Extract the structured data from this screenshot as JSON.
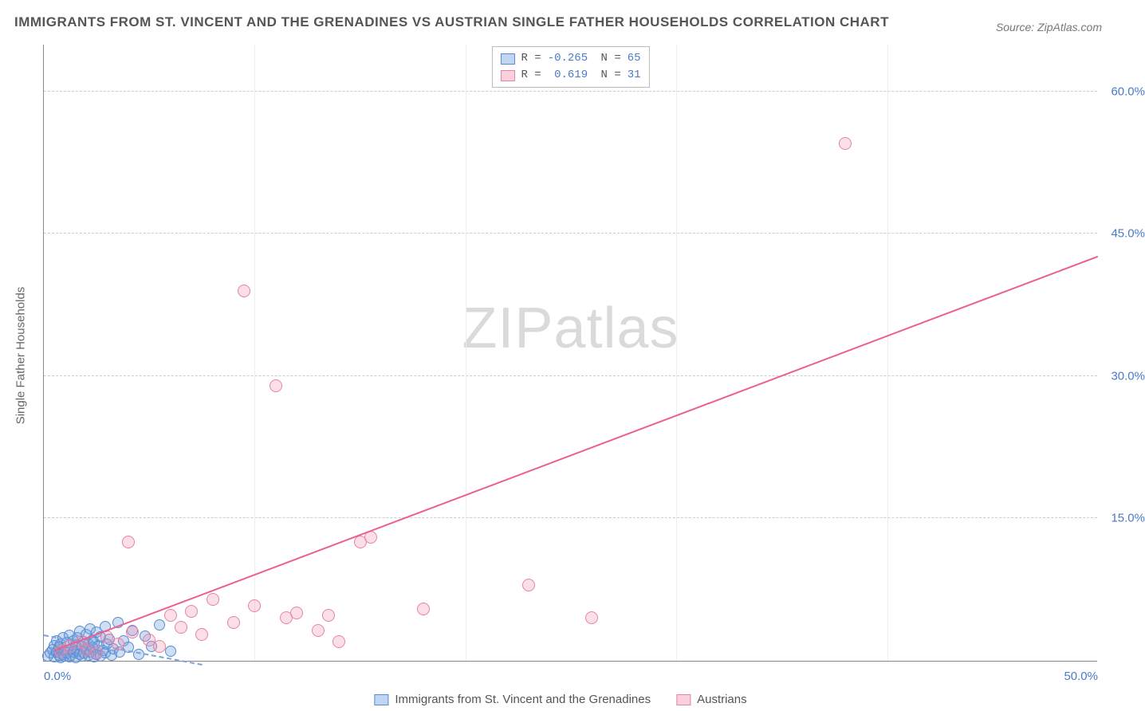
{
  "title": "IMMIGRANTS FROM ST. VINCENT AND THE GRENADINES VS AUSTRIAN SINGLE FATHER HOUSEHOLDS CORRELATION CHART",
  "source": "Source: ZipAtlas.com",
  "watermark": "ZIPatlas",
  "chart": {
    "type": "scatter",
    "xlabel_legend": [
      "Immigrants from St. Vincent and the Grenadines",
      "Austrians"
    ],
    "ylabel": "Single Father Households",
    "xlim": [
      0.0,
      50.0
    ],
    "ylim": [
      0.0,
      65.0
    ],
    "xtick_labels": [
      "0.0%",
      "50.0%"
    ],
    "xtick_positions": [
      0.0,
      50.0
    ],
    "ytick_labels": [
      "15.0%",
      "30.0%",
      "45.0%",
      "60.0%"
    ],
    "ytick_positions": [
      15.0,
      30.0,
      45.0,
      60.0
    ],
    "grid_color": "#cccccc",
    "axis_color": "#888888",
    "background_color": "#ffffff",
    "series": [
      {
        "name": "Immigrants from St. Vincent and the Grenadines",
        "R": -0.265,
        "N": 65,
        "color_fill": "rgba(116,162,222,0.35)",
        "color_stroke": "#5a8cd4",
        "marker_size": 14,
        "trend": {
          "x0": 0.0,
          "y0": 2.6,
          "x1": 7.5,
          "y1": -0.5,
          "style": "dashed"
        },
        "points": [
          [
            0.2,
            0.5
          ],
          [
            0.3,
            0.8
          ],
          [
            0.4,
            1.2
          ],
          [
            0.5,
            0.4
          ],
          [
            0.5,
            1.6
          ],
          [
            0.6,
            0.9
          ],
          [
            0.6,
            2.1
          ],
          [
            0.7,
            0.6
          ],
          [
            0.7,
            1.4
          ],
          [
            0.8,
            0.3
          ],
          [
            0.8,
            1.8
          ],
          [
            0.9,
            0.7
          ],
          [
            0.9,
            2.4
          ],
          [
            1.0,
            0.5
          ],
          [
            1.0,
            1.1
          ],
          [
            1.1,
            1.9
          ],
          [
            1.1,
            0.8
          ],
          [
            1.2,
            0.4
          ],
          [
            1.2,
            2.7
          ],
          [
            1.3,
            1.3
          ],
          [
            1.3,
            0.6
          ],
          [
            1.4,
            2.1
          ],
          [
            1.4,
            0.9
          ],
          [
            1.5,
            1.7
          ],
          [
            1.5,
            0.3
          ],
          [
            1.6,
            2.4
          ],
          [
            1.6,
            1.0
          ],
          [
            1.7,
            0.7
          ],
          [
            1.7,
            3.1
          ],
          [
            1.8,
            1.5
          ],
          [
            1.8,
            0.5
          ],
          [
            1.9,
            2.0
          ],
          [
            1.9,
            0.8
          ],
          [
            2.0,
            1.2
          ],
          [
            2.0,
            2.8
          ],
          [
            2.1,
            0.6
          ],
          [
            2.1,
            1.8
          ],
          [
            2.2,
            3.4
          ],
          [
            2.2,
            0.9
          ],
          [
            2.3,
            1.4
          ],
          [
            2.3,
            2.2
          ],
          [
            2.4,
            0.4
          ],
          [
            2.4,
            1.9
          ],
          [
            2.5,
            3.0
          ],
          [
            2.5,
            0.7
          ],
          [
            2.6,
            1.6
          ],
          [
            2.7,
            2.5
          ],
          [
            2.7,
            0.5
          ],
          [
            2.8,
            1.1
          ],
          [
            2.9,
            3.6
          ],
          [
            2.9,
            0.8
          ],
          [
            3.0,
            1.8
          ],
          [
            3.1,
            2.3
          ],
          [
            3.2,
            0.6
          ],
          [
            3.3,
            1.3
          ],
          [
            3.5,
            4.0
          ],
          [
            3.6,
            0.9
          ],
          [
            3.8,
            2.1
          ],
          [
            4.0,
            1.4
          ],
          [
            4.2,
            3.2
          ],
          [
            4.5,
            0.7
          ],
          [
            4.8,
            2.6
          ],
          [
            5.1,
            1.5
          ],
          [
            5.5,
            3.8
          ],
          [
            6.0,
            1.0
          ]
        ]
      },
      {
        "name": "Austrians",
        "R": 0.619,
        "N": 31,
        "color_fill": "rgba(240,140,170,0.28)",
        "color_stroke": "#e682a6",
        "marker_size": 16,
        "trend": {
          "x0": 0.5,
          "y0": 1.0,
          "x1": 50.0,
          "y1": 42.5,
          "style": "solid"
        },
        "points": [
          [
            0.8,
            1.0
          ],
          [
            1.2,
            1.5
          ],
          [
            1.8,
            2.0
          ],
          [
            2.0,
            1.2
          ],
          [
            2.5,
            0.8
          ],
          [
            3.0,
            2.5
          ],
          [
            3.5,
            1.8
          ],
          [
            4.0,
            12.5
          ],
          [
            4.2,
            3.0
          ],
          [
            5.0,
            2.2
          ],
          [
            5.5,
            1.5
          ],
          [
            6.0,
            4.8
          ],
          [
            6.5,
            3.5
          ],
          [
            7.0,
            5.2
          ],
          [
            7.5,
            2.8
          ],
          [
            8.0,
            6.5
          ],
          [
            9.5,
            39.0
          ],
          [
            9.0,
            4.0
          ],
          [
            10.0,
            5.8
          ],
          [
            11.0,
            29.0
          ],
          [
            11.5,
            4.5
          ],
          [
            12.0,
            5.0
          ],
          [
            13.0,
            3.2
          ],
          [
            13.5,
            4.8
          ],
          [
            14.0,
            2.0
          ],
          [
            15.0,
            12.5
          ],
          [
            15.5,
            13.0
          ],
          [
            18.0,
            5.5
          ],
          [
            23.0,
            8.0
          ],
          [
            26.0,
            4.5
          ],
          [
            38.0,
            54.5
          ]
        ]
      }
    ]
  }
}
